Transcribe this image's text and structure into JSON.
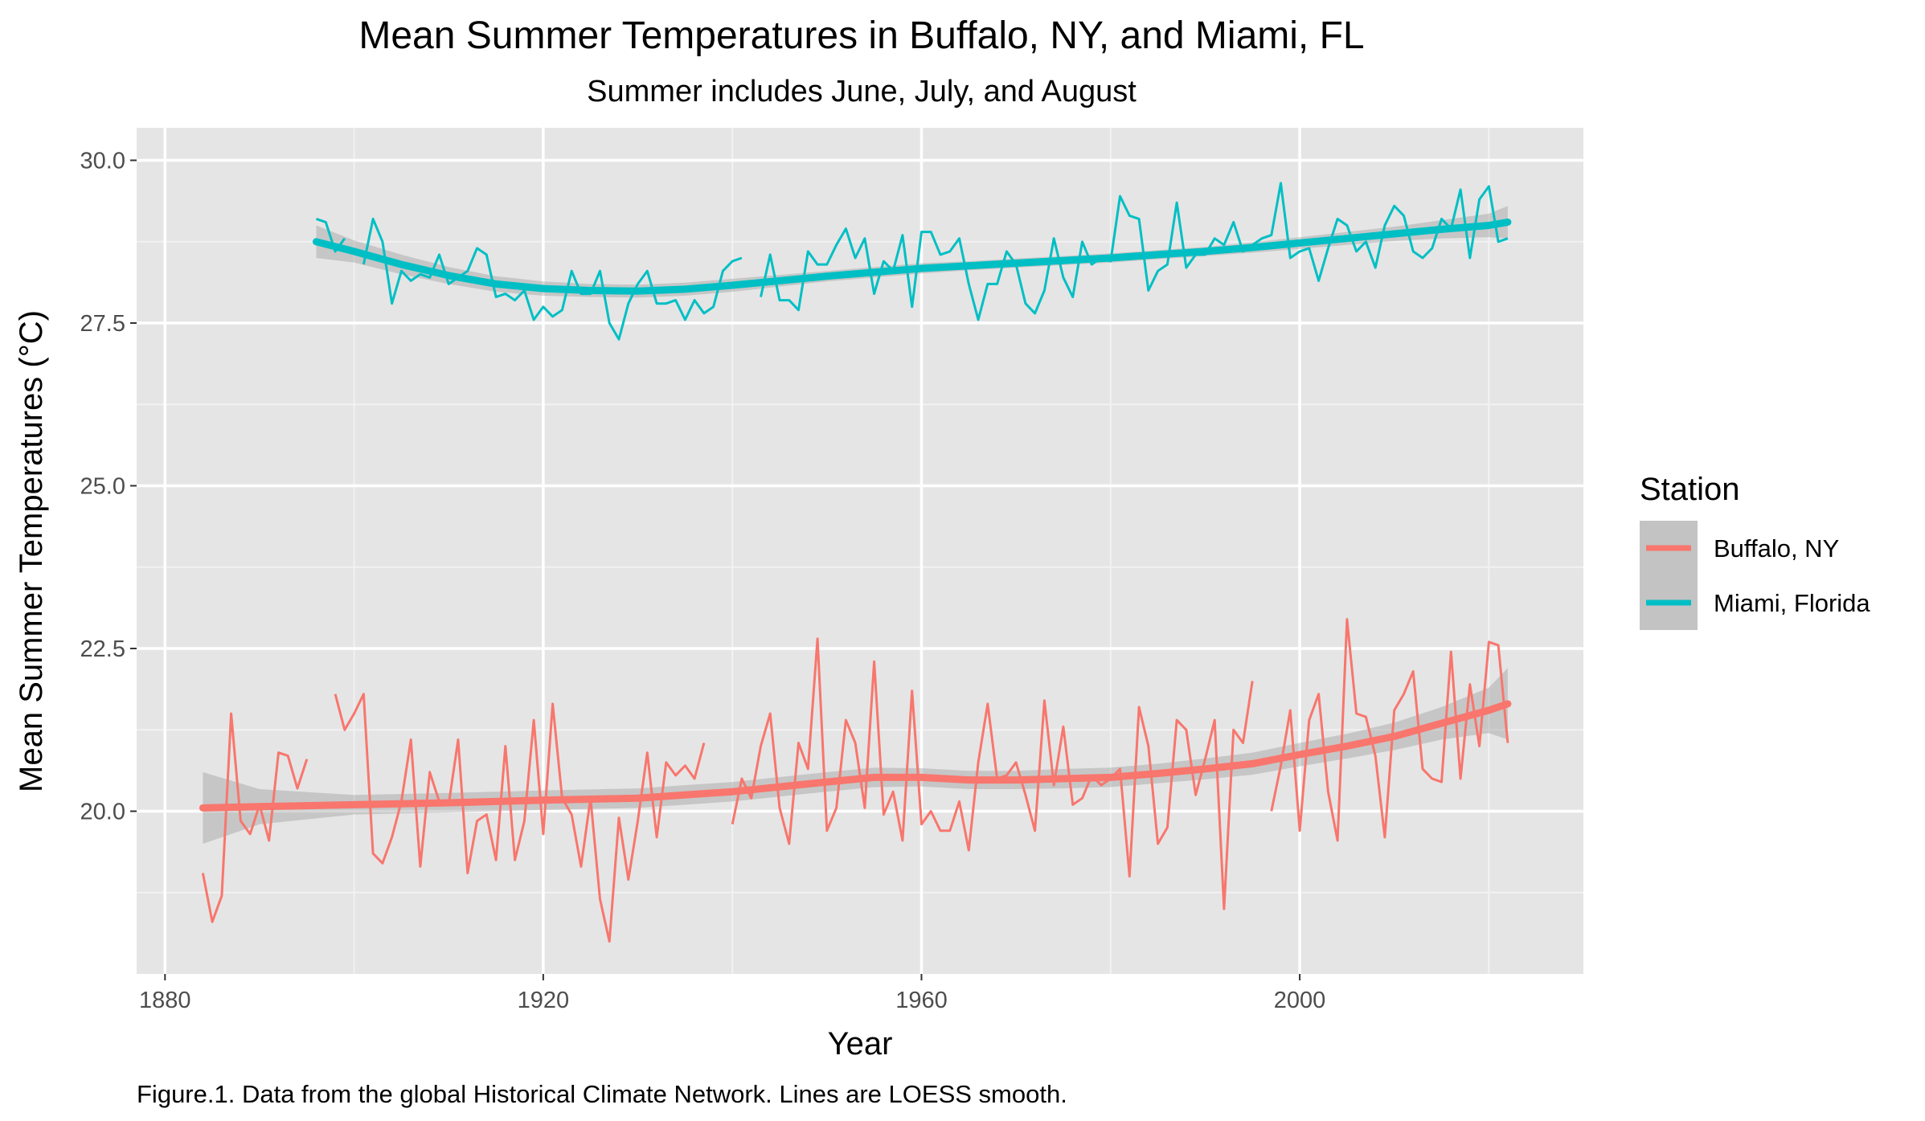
{
  "chart_data": {
    "type": "line",
    "title": "Mean Summer Temperatures in Buffalo, NY, and Miami, FL",
    "subtitle": "Summer includes June, July, and August",
    "xlabel": "Year",
    "ylabel": "Mean Summer Temperatures (°C)",
    "caption": "Figure.1. Data from the global Historical Climate Network. Lines are LOESS smooth.",
    "xlim": [
      1877,
      2030
    ],
    "ylim": [
      17.5,
      30.5
    ],
    "x_ticks": [
      1880,
      1920,
      1960,
      2000
    ],
    "x_tick_labels": [
      "1880",
      "1920",
      "1960",
      "2000"
    ],
    "y_ticks": [
      20.0,
      22.5,
      25.0,
      27.5,
      30.0
    ],
    "y_tick_labels": [
      "20.0",
      "22.5",
      "25.0",
      "27.5",
      "30.0"
    ],
    "grid": true,
    "background": "#e5e5e5",
    "legend": {
      "title": "Station",
      "placement": "right",
      "entries": [
        "Buffalo, NY",
        "Miami, Florida"
      ]
    },
    "series": [
      {
        "name": "Buffalo, NY",
        "color": "#f8766d",
        "segments": [
          {
            "x": [
              1884,
              1885,
              1886,
              1887,
              1888,
              1889,
              1890,
              1891,
              1892,
              1893,
              1894,
              1895
            ],
            "y": [
              19.05,
              18.3,
              18.7,
              21.5,
              19.85,
              19.65,
              20.1,
              19.55,
              20.9,
              20.85,
              20.35,
              20.8
            ]
          },
          {
            "x": [
              1898,
              1899,
              1900,
              1901,
              1902,
              1903,
              1904,
              1905,
              1906,
              1907,
              1908,
              1909,
              1910,
              1911,
              1912,
              1913,
              1914,
              1915,
              1916,
              1917,
              1918,
              1919,
              1920,
              1921,
              1922,
              1923,
              1924,
              1925,
              1926,
              1927,
              1928,
              1929,
              1930,
              1931,
              1932,
              1933,
              1934,
              1935,
              1936,
              1937
            ],
            "y": [
              21.8,
              21.25,
              21.5,
              21.8,
              19.35,
              19.2,
              19.6,
              20.15,
              21.1,
              19.15,
              20.6,
              20.15,
              20.1,
              21.1,
              19.05,
              19.85,
              19.95,
              19.25,
              21.0,
              19.25,
              19.85,
              21.4,
              19.65,
              21.65,
              20.2,
              19.95,
              19.15,
              20.2,
              18.65,
              18.0,
              19.9,
              18.95,
              19.85,
              20.9,
              19.6,
              20.75,
              20.55,
              20.7,
              20.5,
              21.05
            ]
          },
          {
            "x": [
              1940,
              1941,
              1942,
              1943,
              1944,
              1945,
              1946,
              1947,
              1948,
              1949,
              1950,
              1951,
              1952,
              1953,
              1954,
              1955,
              1956,
              1957,
              1958,
              1959,
              1960,
              1961,
              1962,
              1963,
              1964,
              1965,
              1966,
              1967,
              1968,
              1969,
              1970,
              1971,
              1972,
              1973,
              1974,
              1975,
              1976,
              1977,
              1978,
              1979,
              1980,
              1981,
              1982,
              1983,
              1984,
              1985,
              1986,
              1987,
              1988,
              1989,
              1990,
              1991,
              1992,
              1993,
              1994,
              1995
            ],
            "y": [
              19.8,
              20.5,
              20.2,
              21.0,
              21.5,
              20.05,
              19.5,
              21.05,
              20.65,
              22.65,
              19.7,
              20.05,
              21.4,
              21.05,
              20.05,
              22.3,
              19.95,
              20.3,
              19.55,
              21.85,
              19.8,
              20.0,
              19.7,
              19.7,
              20.15,
              19.4,
              20.75,
              21.65,
              20.5,
              20.55,
              20.75,
              20.25,
              19.7,
              21.7,
              20.4,
              21.3,
              20.1,
              20.2,
              20.55,
              20.4,
              20.5,
              20.65,
              19.0,
              21.6,
              21.0,
              19.5,
              19.75,
              21.4,
              21.25,
              20.25,
              20.8,
              21.4,
              18.5,
              21.25,
              21.05,
              22.0
            ]
          },
          {
            "x": [
              1997,
              1998,
              1999,
              2000,
              2001,
              2002,
              2003,
              2004,
              2005,
              2006,
              2007,
              2008,
              2009,
              2010,
              2011,
              2012,
              2013,
              2014,
              2015,
              2016,
              2017,
              2018,
              2019,
              2020,
              2021,
              2022
            ],
            "y": [
              20.0,
              20.7,
              21.55,
              19.7,
              21.4,
              21.8,
              20.3,
              19.55,
              22.95,
              21.5,
              21.45,
              20.85,
              19.6,
              21.55,
              21.8,
              22.15,
              20.65,
              20.5,
              20.45,
              22.45,
              20.5,
              21.95,
              21.0,
              22.6,
              22.55,
              21.05
            ]
          }
        ],
        "smooth": {
          "x": [
            1884,
            1890,
            1900,
            1910,
            1920,
            1930,
            1940,
            1950,
            1955,
            1960,
            1965,
            1970,
            1975,
            1980,
            1985,
            1990,
            1995,
            2000,
            2005,
            2010,
            2015,
            2020,
            2022
          ],
          "y": [
            20.05,
            20.07,
            20.1,
            20.13,
            20.17,
            20.2,
            20.3,
            20.45,
            20.52,
            20.52,
            20.48,
            20.48,
            20.5,
            20.52,
            20.58,
            20.65,
            20.73,
            20.87,
            21.0,
            21.15,
            21.35,
            21.55,
            21.65
          ],
          "ci_low": [
            19.5,
            19.8,
            19.95,
            19.98,
            20.02,
            20.05,
            20.15,
            20.3,
            20.37,
            20.38,
            20.34,
            20.34,
            20.35,
            20.37,
            20.43,
            20.49,
            20.56,
            20.69,
            20.81,
            20.94,
            21.1,
            21.2,
            21.1
          ],
          "ci_high": [
            20.6,
            20.34,
            20.25,
            20.28,
            20.32,
            20.35,
            20.45,
            20.6,
            20.67,
            20.66,
            20.62,
            20.62,
            20.65,
            20.67,
            20.73,
            20.81,
            20.9,
            21.05,
            21.19,
            21.36,
            21.6,
            21.9,
            22.2
          ]
        }
      },
      {
        "name": "Miami, Florida",
        "color": "#00bfc4",
        "segments": [
          {
            "x": [
              1896,
              1897,
              1898,
              1899
            ],
            "y": [
              29.1,
              29.05,
              28.6,
              28.8
            ]
          },
          {
            "x": [
              1901,
              1902,
              1903,
              1904,
              1905,
              1906,
              1907,
              1908,
              1909,
              1910,
              1911,
              1912,
              1913,
              1914,
              1915,
              1916,
              1917,
              1918,
              1919,
              1920,
              1921,
              1922,
              1923,
              1924,
              1925,
              1926,
              1927,
              1928,
              1929,
              1930,
              1931,
              1932,
              1933,
              1934,
              1935,
              1936,
              1937,
              1938,
              1939,
              1940,
              1941
            ],
            "y": [
              28.4,
              29.1,
              28.75,
              27.8,
              28.3,
              28.15,
              28.25,
              28.2,
              28.55,
              28.1,
              28.2,
              28.3,
              28.65,
              28.55,
              27.9,
              27.95,
              27.85,
              28.0,
              27.55,
              27.75,
              27.6,
              27.7,
              28.3,
              27.95,
              27.95,
              28.3,
              27.5,
              27.25,
              27.8,
              28.1,
              28.3,
              27.8,
              27.8,
              27.85,
              27.55,
              27.85,
              27.65,
              27.75,
              28.3,
              28.45,
              28.5
            ]
          },
          {
            "x": [
              1943,
              1944,
              1945,
              1946,
              1947,
              1948,
              1949,
              1950,
              1951,
              1952,
              1953,
              1954,
              1955,
              1956,
              1957,
              1958,
              1959,
              1960,
              1961,
              1962,
              1963,
              1964,
              1965,
              1966,
              1967,
              1968,
              1969,
              1970,
              1971,
              1972,
              1973,
              1974,
              1975,
              1976,
              1977,
              1978,
              1979,
              1980,
              1981,
              1982,
              1983,
              1984,
              1985,
              1986,
              1987,
              1988,
              1989,
              1990,
              1991,
              1992,
              1993,
              1994,
              1995,
              1996,
              1997,
              1998,
              1999,
              2000,
              2001,
              2002,
              2003,
              2004,
              2005,
              2006,
              2007,
              2008,
              2009,
              2010,
              2011,
              2012,
              2013,
              2014,
              2015,
              2016,
              2017,
              2018,
              2019,
              2020,
              2021,
              2022
            ],
            "y": [
              27.9,
              28.55,
              27.85,
              27.85,
              27.7,
              28.6,
              28.4,
              28.4,
              28.7,
              28.95,
              28.5,
              28.8,
              27.95,
              28.45,
              28.3,
              28.85,
              27.75,
              28.9,
              28.9,
              28.55,
              28.6,
              28.8,
              28.1,
              27.55,
              28.1,
              28.1,
              28.6,
              28.4,
              27.8,
              27.65,
              28.0,
              28.8,
              28.2,
              27.9,
              28.75,
              28.4,
              28.5,
              28.45,
              29.45,
              29.15,
              29.1,
              28.0,
              28.3,
              28.4,
              29.35,
              28.35,
              28.55,
              28.55,
              28.8,
              28.7,
              29.05,
              28.6,
              28.7,
              28.8,
              28.85,
              29.65,
              28.5,
              28.6,
              28.65,
              28.15,
              28.65,
              29.1,
              29.0,
              28.6,
              28.75,
              28.35,
              29.0,
              29.3,
              29.15,
              28.6,
              28.5,
              28.65,
              29.1,
              28.95,
              29.55,
              28.5,
              29.4,
              29.6,
              28.75,
              28.8
            ]
          }
        ],
        "smooth": {
          "x": [
            1896,
            1900,
            1905,
            1910,
            1915,
            1920,
            1925,
            1930,
            1935,
            1940,
            1945,
            1950,
            1955,
            1960,
            1965,
            1970,
            1975,
            1980,
            1985,
            1990,
            1995,
            2000,
            2005,
            2010,
            2015,
            2020,
            2022
          ],
          "y": [
            28.75,
            28.6,
            28.4,
            28.23,
            28.1,
            28.03,
            28.0,
            27.99,
            28.02,
            28.08,
            28.15,
            28.22,
            28.28,
            28.34,
            28.38,
            28.42,
            28.46,
            28.5,
            28.55,
            28.6,
            28.66,
            28.73,
            28.8,
            28.87,
            28.94,
            29.0,
            29.05
          ],
          "ci_low": [
            28.5,
            28.43,
            28.25,
            28.1,
            27.98,
            27.92,
            27.9,
            27.89,
            27.92,
            27.98,
            28.06,
            28.14,
            28.2,
            28.26,
            28.31,
            28.35,
            28.39,
            28.43,
            28.48,
            28.53,
            28.58,
            28.64,
            28.7,
            28.76,
            28.8,
            28.82,
            28.8
          ],
          "ci_high": [
            29.0,
            28.77,
            28.55,
            28.36,
            28.22,
            28.14,
            28.1,
            28.09,
            28.12,
            28.18,
            28.24,
            28.3,
            28.36,
            28.42,
            28.45,
            28.49,
            28.53,
            28.57,
            28.62,
            28.67,
            28.74,
            28.82,
            28.9,
            28.98,
            29.08,
            29.18,
            29.3
          ]
        }
      }
    ]
  }
}
